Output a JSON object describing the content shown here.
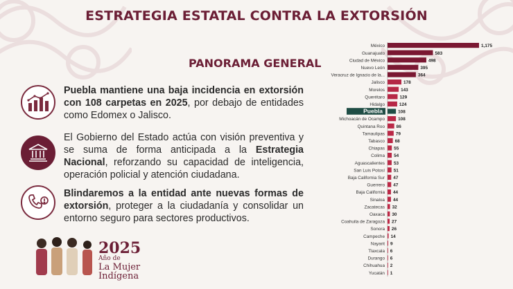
{
  "header": {
    "title": "ESTRATEGIA ESTATAL CONTRA LA EXTORSIÓN",
    "subtitle": "PANORAMA GENERAL"
  },
  "paragraphs": {
    "p1_bold": "Puebla mantiene una baja incidencia en extorsión con 108 carpetas en 2025",
    "p1_rest": ", por debajo de entidades como Edomex o Jalisco.",
    "p2_start": "El Gobierno del Estado actúa con visión preventiva y se suma de forma anticipada a la ",
    "p2_bold": "Estrategia Nacional",
    "p2_rest": ", reforzando su capacidad de inteligencia, operación policial y atención ciudadana.",
    "p3_bold": "Blindaremos a la entidad ante nuevas formas de extorsión",
    "p3_rest": ", proteger a la ciudadanía y consolidar un entorno seguro para sectores productivos."
  },
  "icons": {
    "i1": "bar-chart-growth-icon",
    "i2": "government-building-icon",
    "i3": "phone-threat-icon"
  },
  "brand": {
    "year": "2025",
    "line1": "Año de",
    "line2": "La Mujer",
    "line3": "Indígena"
  },
  "colors": {
    "primary": "#6b1e35",
    "bar_dark": "#7a1832",
    "highlight": "#1f4d45"
  },
  "chart_data": {
    "type": "bar",
    "orientation": "horizontal",
    "highlight": "Puebla",
    "categories": [
      "México",
      "Guanajuato",
      "Ciudad de México",
      "Nuevo León",
      "Veracruz de Ignacio de la...",
      "Jalisco",
      "Morelos",
      "Querétaro",
      "Hidalgo",
      "Puebla",
      "Michoacán de Ocampo",
      "Quintana Roo",
      "Tamaulipas",
      "Tabasco",
      "Chiapas",
      "Colima",
      "Aguascalientes",
      "San Luis Potosí",
      "Baja California Sur",
      "Guerrero",
      "Baja California",
      "Sinaloa",
      "Zacatecas",
      "Oaxaca",
      "Coahuila de Zaragoza",
      "Sonora",
      "Campeche",
      "Nayarit",
      "Tlaxcala",
      "Durango",
      "Chihuahua",
      "Yucatán"
    ],
    "values": [
      1175,
      583,
      498,
      395,
      364,
      178,
      143,
      129,
      124,
      108,
      108,
      86,
      79,
      68,
      55,
      54,
      53,
      51,
      47,
      47,
      44,
      44,
      32,
      30,
      27,
      26,
      14,
      9,
      6,
      6,
      2,
      1
    ],
    "value_labels": [
      "1,175",
      "583",
      "498",
      "395",
      "364",
      "178",
      "143",
      "129",
      "124",
      "108",
      "108",
      "86",
      "79",
      "68",
      "55",
      "54",
      "53",
      "51",
      "47",
      "47",
      "44",
      "44",
      "32",
      "30",
      "27",
      "26",
      "14",
      "9",
      "6",
      "6",
      "2",
      "1"
    ],
    "xlim": [
      0,
      1175
    ],
    "grid": false,
    "legend": "none"
  }
}
